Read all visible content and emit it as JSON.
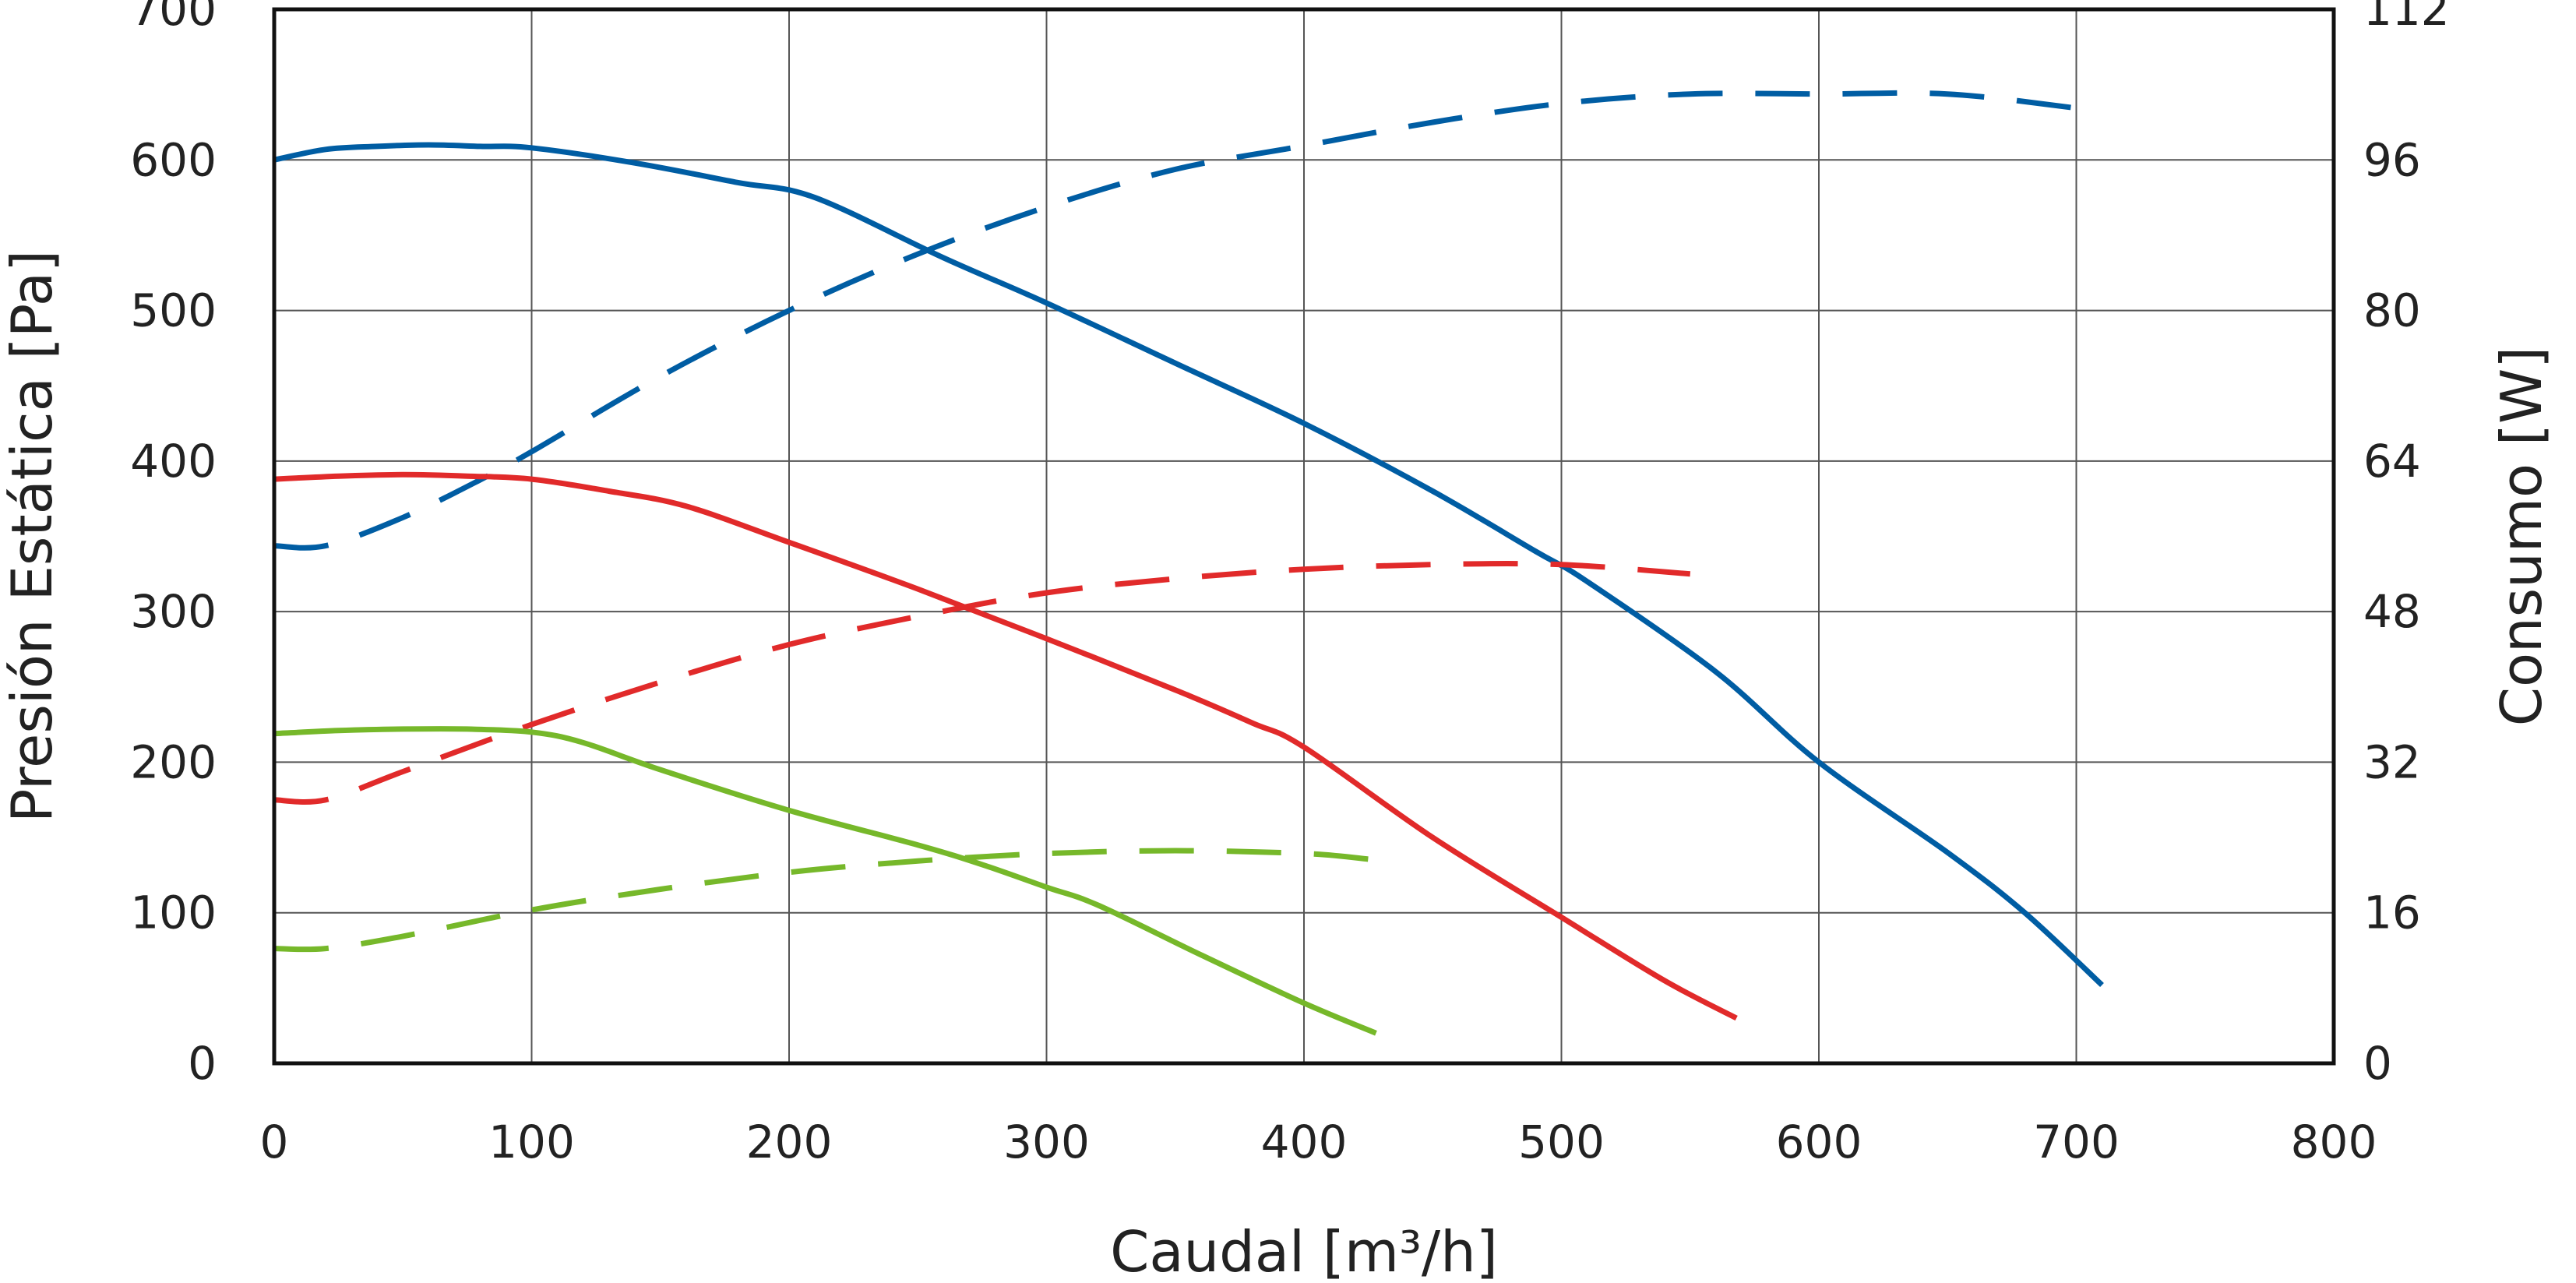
{
  "chart_data": {
    "type": "line",
    "title": "",
    "xlabel": "Caudal [m³/h]",
    "ylabel": "Presión Estática [Pa]",
    "y2label": "Consumo [W]",
    "xlim": [
      0,
      800
    ],
    "ylim": [
      0,
      700
    ],
    "y2lim": [
      0,
      112
    ],
    "x_ticks": [
      "0",
      "100",
      "200",
      "300",
      "400",
      "500",
      "600",
      "700",
      "800"
    ],
    "y_ticks": [
      "0",
      "100",
      "200",
      "300",
      "400",
      "500",
      "600",
      "700"
    ],
    "y2_ticks": [
      "0",
      "16",
      "32",
      "48",
      "64",
      "80",
      "96",
      "112"
    ],
    "grid": true,
    "colors": {
      "blue": "#005da3",
      "red": "#e12a2a",
      "green": "#76b82a",
      "grid": "#555555",
      "frame": "#111111",
      "text": "#222222"
    },
    "series": [
      {
        "axis": "left",
        "color": "blue",
        "style": "solid",
        "x": [
          0,
          20,
          40,
          60,
          80,
          100,
          140,
          180,
          210,
          260,
          300,
          350,
          400,
          450,
          490,
          510,
          560,
          600,
          650,
          680,
          710
        ],
        "y": [
          600,
          607,
          609,
          610,
          609,
          608,
          598,
          585,
          575,
          535,
          505,
          465,
          425,
          380,
          340,
          320,
          260,
          200,
          140,
          100,
          52
        ]
      },
      {
        "axis": "right",
        "color": "blue",
        "style": "dashed",
        "x": [
          0,
          20,
          50,
          80,
          100,
          150,
          200,
          250,
          300,
          350,
          400,
          450,
          500,
          550,
          600,
          650,
          700,
          710
        ],
        "y": [
          55,
          55,
          58,
          62,
          65,
          73,
          80,
          86,
          91,
          95,
          97.5,
          100,
          102,
          103,
          103,
          103,
          101.5,
          101
        ]
      },
      {
        "axis": "left",
        "color": "red",
        "style": "solid",
        "x": [
          0,
          25,
          50,
          75,
          100,
          130,
          160,
          200,
          250,
          300,
          350,
          380,
          400,
          450,
          500,
          540,
          568
        ],
        "y": [
          388,
          390,
          391,
          390,
          388,
          380,
          370,
          346,
          315,
          282,
          248,
          226,
          210,
          150,
          97,
          55,
          30
        ]
      },
      {
        "axis": "right",
        "color": "red",
        "style": "dashed",
        "x": [
          0,
          20,
          50,
          100,
          150,
          200,
          250,
          300,
          350,
          400,
          450,
          500,
          550
        ],
        "y": [
          28,
          28,
          31,
          36,
          40.5,
          44.5,
          47.5,
          50,
          51.5,
          52.5,
          53,
          53,
          52
        ]
      },
      {
        "axis": "left",
        "color": "green",
        "style": "solid",
        "x": [
          0,
          25,
          50,
          75,
          100,
          120,
          150,
          200,
          250,
          275,
          300,
          320,
          360,
          400,
          428
        ],
        "y": [
          219,
          221,
          222,
          222,
          220,
          213,
          195,
          168,
          145,
          132,
          117,
          105,
          72,
          40,
          20
        ]
      },
      {
        "axis": "right",
        "color": "green",
        "style": "dashed",
        "x": [
          0,
          20,
          50,
          100,
          150,
          200,
          250,
          300,
          350,
          400,
          425
        ],
        "y": [
          12.2,
          12.2,
          13.5,
          16.3,
          18.5,
          20.3,
          21.5,
          22.3,
          22.6,
          22.3,
          21.7
        ]
      }
    ]
  }
}
